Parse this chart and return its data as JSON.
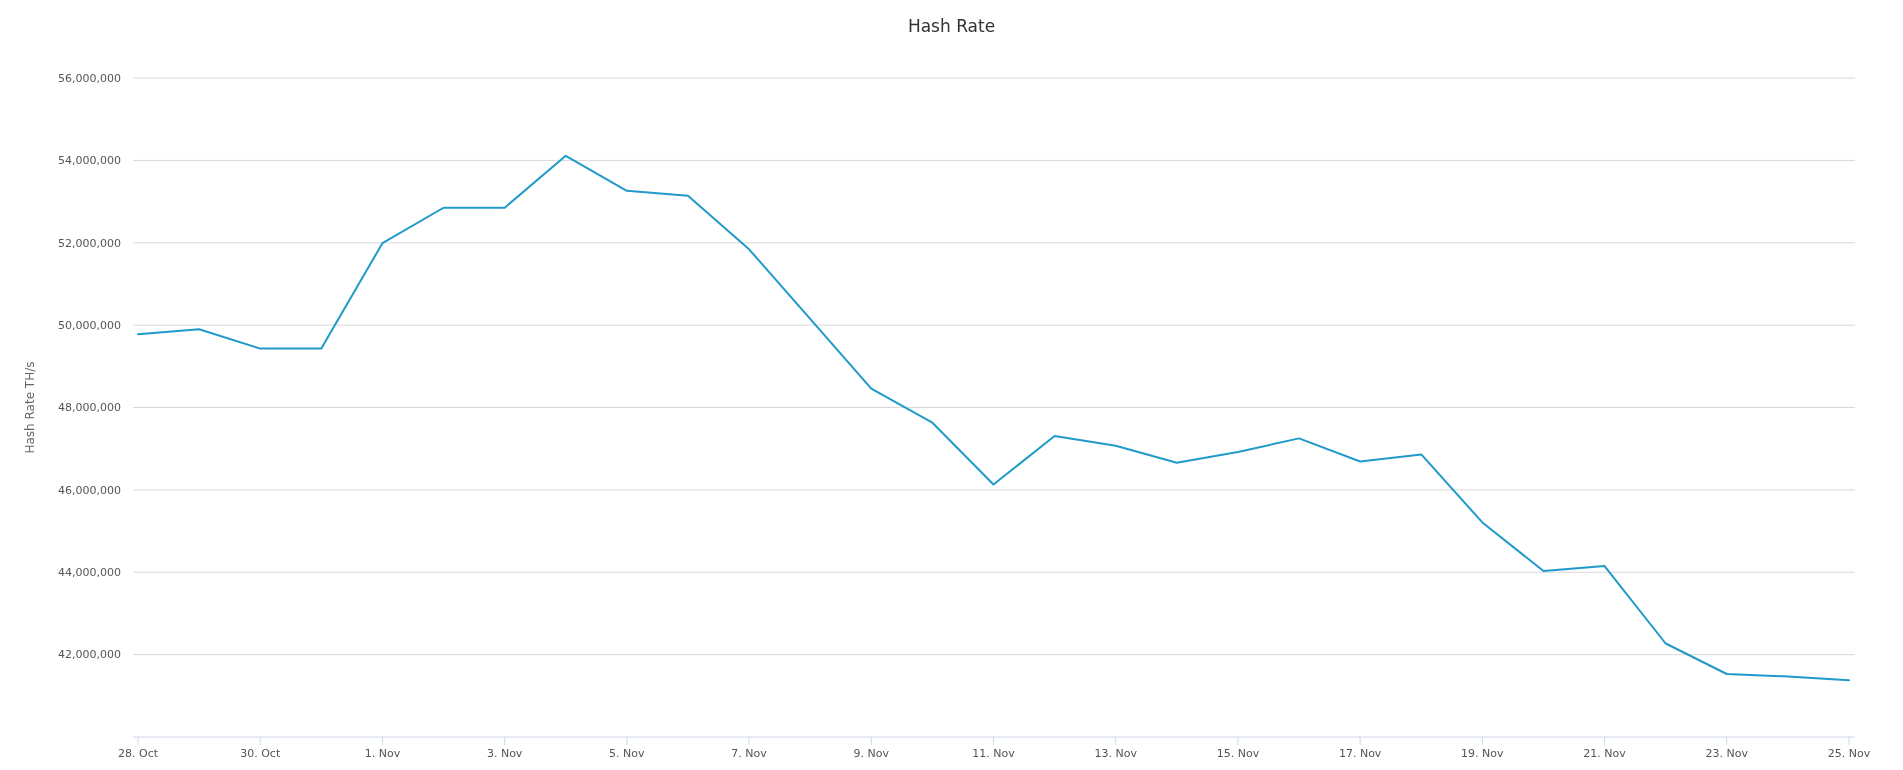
{
  "chart_data": {
    "type": "line",
    "title": "Hash Rate",
    "ylabel": "Hash Rate TH/s",
    "x": [
      "--10-28",
      "--10-29",
      "--10-30",
      "--10-31",
      "--11-01",
      "--11-02",
      "--11-03",
      "--11-04",
      "--11-05",
      "--11-06",
      "--11-07",
      "--11-08",
      "--11-09",
      "--11-10",
      "--11-11",
      "--11-12",
      "--11-13",
      "--11-14",
      "--11-15",
      "--11-16",
      "--11-17",
      "--11-18",
      "--11-19",
      "--11-20",
      "--11-21",
      "--11-22",
      "--11-23",
      "--11-24",
      "--11-25"
    ],
    "series": [
      {
        "color": "#1f9ac9",
        "values": [
          49780000,
          49900000,
          49430000,
          49430000,
          51990000,
          52850000,
          52850000,
          54110000,
          53260000,
          53140000,
          51840000,
          50150000,
          48460000,
          47630000,
          46130000,
          47310000,
          47070000,
          46660000,
          46920000,
          47250000,
          46690000,
          46860000,
          45210000,
          44030000,
          44150000,
          42270000,
          41530000,
          41470000,
          41380000
        ]
      }
    ],
    "xlim": [
      "--10-28",
      "--11-25"
    ],
    "xticks": [
      {
        "value": "--10-28",
        "label": "28. Oct"
      },
      {
        "value": "--10-30",
        "label": "30. Oct"
      },
      {
        "value": "--11-01",
        "label": "1. Nov"
      },
      {
        "value": "--11-03",
        "label": "3. Nov"
      },
      {
        "value": "--11-05",
        "label": "5. Nov"
      },
      {
        "value": "--11-07",
        "label": "7. Nov"
      },
      {
        "value": "--11-09",
        "label": "9. Nov"
      },
      {
        "value": "--11-11",
        "label": "11. Nov"
      },
      {
        "value": "--11-13",
        "label": "13. Nov"
      },
      {
        "value": "--11-15",
        "label": "15. Nov"
      },
      {
        "value": "--11-17",
        "label": "17. Nov"
      },
      {
        "value": "--11-19",
        "label": "19. Nov"
      },
      {
        "value": "--11-21",
        "label": "21. Nov"
      },
      {
        "value": "--11-23",
        "label": "23. Nov"
      },
      {
        "value": "--11-25",
        "label": "25. Nov"
      }
    ],
    "ylim": [
      40000000,
      56000000
    ],
    "yticks": [
      {
        "value": 42000000,
        "label": "42,000,000"
      },
      {
        "value": 44000000,
        "label": "44,000,000"
      },
      {
        "value": 46000000,
        "label": "46,000,000"
      },
      {
        "value": 48000000,
        "label": "48,000,000"
      },
      {
        "value": 50000000,
        "label": "50,000,000"
      },
      {
        "value": 52000000,
        "label": "52,000,000"
      },
      {
        "value": 54000000,
        "label": "54,000,000"
      },
      {
        "value": 56000000,
        "label": "56,000,000"
      }
    ],
    "grid": "y",
    "marker": "none",
    "line_style": "solid"
  }
}
